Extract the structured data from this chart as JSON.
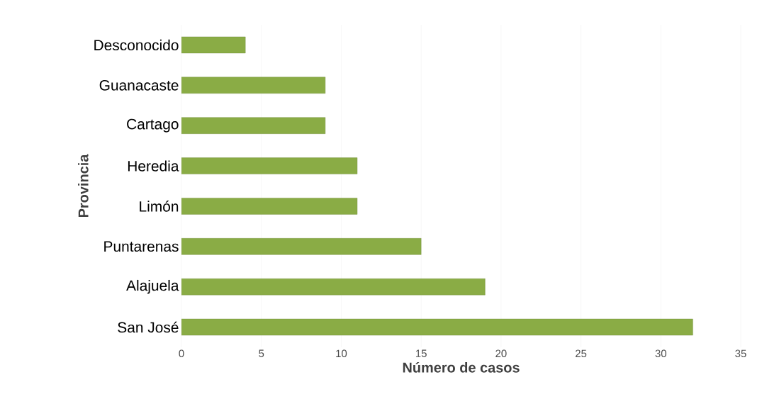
{
  "chart_data": {
    "type": "bar",
    "orientation": "horizontal",
    "categories": [
      "Desconocido",
      "Guanacaste",
      "Cartago",
      "Heredia",
      "Limón",
      "Puntarenas",
      "Alajuela",
      "San José"
    ],
    "values": [
      4,
      9,
      9,
      11,
      11,
      15,
      19,
      32
    ],
    "color": "#8aac45",
    "xlim": [
      0,
      35
    ],
    "xticks": [
      0,
      5,
      10,
      15,
      20,
      25,
      30,
      35
    ],
    "grid": "x",
    "xlabel": "Número de casos",
    "ylabel": "Provincia"
  }
}
